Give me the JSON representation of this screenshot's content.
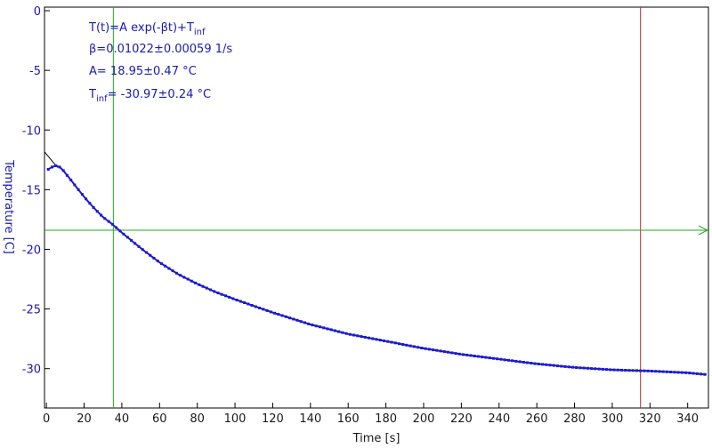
{
  "chart_data": {
    "type": "scatter",
    "xlabel": "Time [s]",
    "ylabel": "Temperature [C]",
    "xlim": [
      -1,
      351
    ],
    "ylim": [
      -33.3,
      0.3
    ],
    "xticks": [
      0,
      20,
      40,
      60,
      80,
      100,
      120,
      140,
      160,
      180,
      200,
      220,
      240,
      260,
      280,
      300,
      320,
      340
    ],
    "yticks": [
      0,
      -5,
      -10,
      -15,
      -20,
      -25,
      -30
    ],
    "grid": false,
    "annotations": {
      "model": {
        "main": "T(t)=A exp(-βt)+T",
        "sub": "inf"
      },
      "beta": "β=0.01022±0.00059 1/s",
      "amp": "A= 18.95±0.47 °C",
      "tinf": {
        "main": "T",
        "sub": "inf",
        "rest": "= -30.97±0.24 °C"
      }
    },
    "fit": {
      "A": 18.95,
      "beta": 0.01022,
      "T_inf": -30.97,
      "x_range": [
        -1,
        6
      ]
    },
    "series": [
      {
        "x": [
          1,
          3,
          5,
          7,
          9,
          11,
          13,
          15,
          17,
          20,
          25,
          30,
          35,
          40,
          50,
          60,
          70,
          80,
          90,
          100,
          120,
          140,
          160,
          180,
          200,
          220,
          240,
          260,
          280,
          300,
          320,
          340,
          350
        ],
        "y": [
          -13.3,
          -13.1,
          -13.0,
          -13.1,
          -13.4,
          -13.8,
          -14.2,
          -14.6,
          -15.0,
          -15.6,
          -16.5,
          -17.3,
          -17.9,
          -18.6,
          -19.9,
          -21.1,
          -22.1,
          -22.9,
          -23.6,
          -24.2,
          -25.3,
          -26.3,
          -27.1,
          -27.7,
          -28.3,
          -28.8,
          -29.2,
          -29.6,
          -29.9,
          -30.1,
          -30.2,
          -30.35,
          -30.5
        ],
        "color": "#1a1ad0"
      }
    ],
    "cursors": {
      "vertical_green_x": 35.5,
      "vertical_red_x": 315,
      "horizontal_green_y": -18.4
    },
    "colors": {
      "data": "#1a1ad0",
      "fit": "#000000",
      "cursor_green": "#22aa22",
      "cursor_red": "#cc2222",
      "axis_text": "#1a1ab0"
    }
  }
}
